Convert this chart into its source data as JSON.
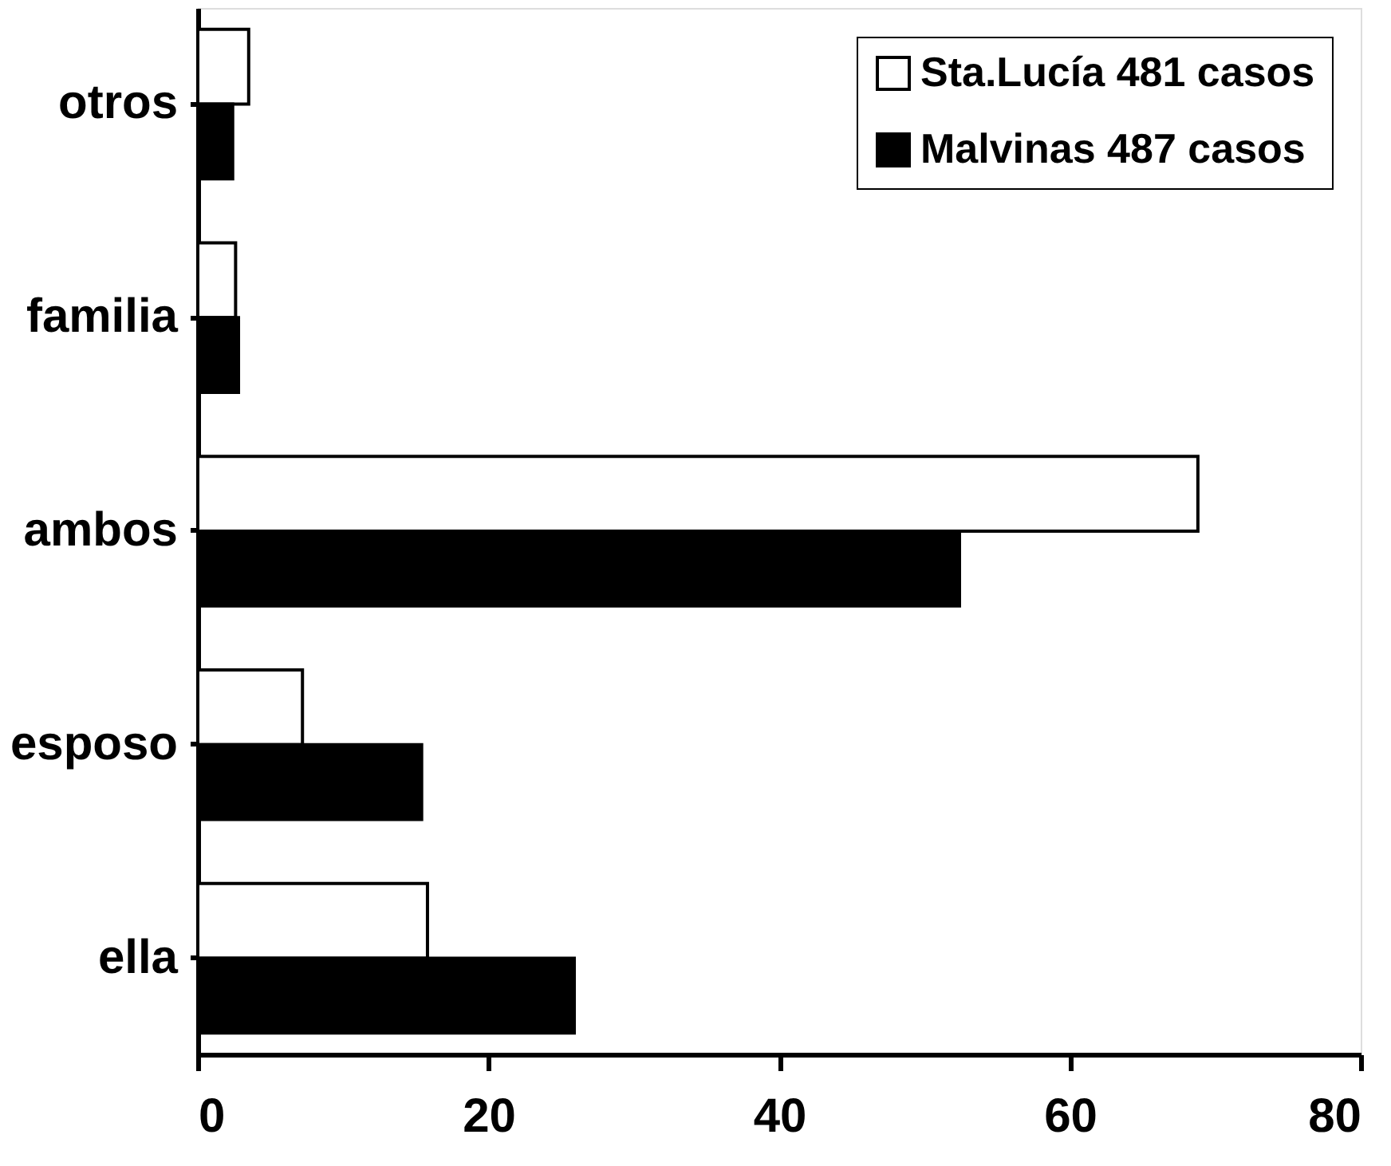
{
  "chart_data": {
    "type": "bar",
    "orientation": "horizontal",
    "categories": [
      "otros",
      "familia",
      "ambos",
      "esposo",
      "ella"
    ],
    "series": [
      {
        "name": "Sta.Lucía 481 casos",
        "color": "#ffffff",
        "values": [
          3.5,
          2.6,
          68.8,
          7.2,
          15.8
        ]
      },
      {
        "name": "Malvinas 487 casos",
        "color": "#000000",
        "values": [
          2.4,
          2.8,
          52.4,
          15.4,
          25.9
        ]
      }
    ],
    "xlim": [
      0,
      80
    ],
    "xticks": [
      0,
      20,
      40,
      60,
      80
    ],
    "grid": false,
    "legend": "top right"
  }
}
